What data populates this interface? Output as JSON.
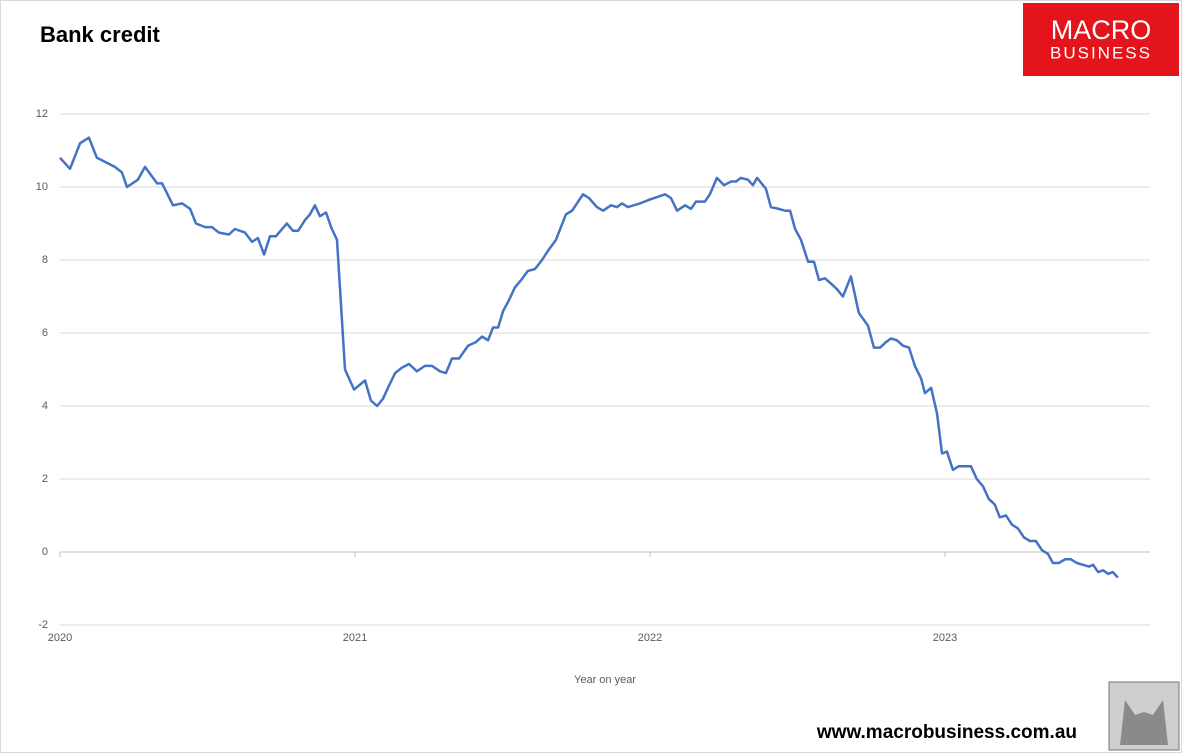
{
  "chart_data": {
    "type": "line",
    "title": "Bank credit",
    "x_label": "Year on year",
    "logo_text": [
      "MACRO",
      "BUSINESS"
    ],
    "source": "www.macrobusiness.com.au",
    "color": "#4472c4",
    "grid": true,
    "xlim": [
      2020,
      2023.695
    ],
    "xticks": [
      2020,
      2021,
      2022,
      2023
    ],
    "ylim": [
      -2,
      12
    ],
    "yticks": [
      -2,
      0,
      2,
      4,
      6,
      8,
      10,
      12
    ],
    "x": [
      2020.0,
      2020.034,
      2020.068,
      2020.098,
      2020.125,
      2020.186,
      2020.21,
      2020.227,
      2020.264,
      2020.288,
      2020.329,
      2020.346,
      2020.383,
      2020.414,
      2020.441,
      2020.461,
      2020.492,
      2020.515,
      2020.539,
      2020.573,
      2020.593,
      2020.627,
      2020.651,
      2020.671,
      2020.692,
      2020.712,
      2020.732,
      2020.769,
      2020.79,
      2020.807,
      2020.831,
      2020.847,
      2020.864,
      2020.881,
      2020.902,
      2020.919,
      2020.939,
      2020.966,
      2020.997,
      2021.034,
      2021.054,
      2021.075,
      2021.095,
      2021.115,
      2021.136,
      2021.159,
      2021.183,
      2021.21,
      2021.237,
      2021.261,
      2021.288,
      2021.308,
      2021.329,
      2021.353,
      2021.383,
      2021.41,
      2021.431,
      2021.451,
      2021.468,
      2021.485,
      2021.502,
      2021.522,
      2021.542,
      2021.563,
      2021.586,
      2021.61,
      2021.634,
      2021.654,
      2021.681,
      2021.715,
      2021.736,
      2021.773,
      2021.793,
      2021.82,
      2021.841,
      2021.868,
      2021.888,
      2021.905,
      2021.925,
      2021.966,
      2021.997,
      2022.034,
      2022.051,
      2022.071,
      2022.092,
      2022.119,
      2022.139,
      2022.156,
      2022.186,
      2022.203,
      2022.227,
      2022.251,
      2022.275,
      2022.292,
      2022.308,
      2022.332,
      2022.349,
      2022.363,
      2022.393,
      2022.41,
      2022.437,
      2022.458,
      2022.475,
      2022.492,
      2022.512,
      2022.536,
      2022.556,
      2022.573,
      2022.593,
      2022.614,
      2022.634,
      2022.654,
      2022.681,
      2022.708,
      2022.739,
      2022.759,
      2022.78,
      2022.8,
      2022.817,
      2022.837,
      2022.858,
      2022.878,
      2022.898,
      2022.919,
      2022.932,
      2022.953,
      2022.973,
      2022.99,
      2023.007,
      2023.027,
      2023.047,
      2023.071,
      2023.088,
      2023.108,
      2023.129,
      2023.149,
      2023.169,
      2023.186,
      2023.207,
      2023.227,
      2023.247,
      2023.268,
      2023.288,
      2023.308,
      2023.329,
      2023.349,
      2023.366,
      2023.386,
      2023.407,
      2023.427,
      2023.447,
      2023.468,
      2023.488,
      2023.502,
      2023.519,
      2023.536,
      2023.553,
      2023.569,
      2023.586
    ],
    "values": [
      10.8,
      10.5,
      11.2,
      11.35,
      10.8,
      10.55,
      10.4,
      10.0,
      10.2,
      10.55,
      10.1,
      10.1,
      9.5,
      9.55,
      9.4,
      9.0,
      8.9,
      8.9,
      8.75,
      8.7,
      8.85,
      8.75,
      8.5,
      8.6,
      8.15,
      8.65,
      8.65,
      9.0,
      8.8,
      8.8,
      9.1,
      9.25,
      9.5,
      9.2,
      9.3,
      8.9,
      8.55,
      5.0,
      4.45,
      4.7,
      4.15,
      4.0,
      4.2,
      4.55,
      4.9,
      5.05,
      5.15,
      4.95,
      5.1,
      5.1,
      4.95,
      4.9,
      5.3,
      5.3,
      5.65,
      5.75,
      5.9,
      5.8,
      6.15,
      6.15,
      6.6,
      6.9,
      7.25,
      7.45,
      7.7,
      7.75,
      8.0,
      8.25,
      8.55,
      9.25,
      9.35,
      9.8,
      9.7,
      9.45,
      9.35,
      9.5,
      9.45,
      9.55,
      9.45,
      9.55,
      9.65,
      9.75,
      9.8,
      9.7,
      9.35,
      9.5,
      9.4,
      9.6,
      9.6,
      9.8,
      10.25,
      10.05,
      10.15,
      10.15,
      10.25,
      10.2,
      10.05,
      10.25,
      9.95,
      9.45,
      9.4,
      9.35,
      9.35,
      8.85,
      8.55,
      7.95,
      7.95,
      7.45,
      7.5,
      7.35,
      7.2,
      7.0,
      7.55,
      6.55,
      6.2,
      5.6,
      5.6,
      5.75,
      5.85,
      5.8,
      5.65,
      5.6,
      5.1,
      4.75,
      4.35,
      4.5,
      3.8,
      2.7,
      2.75,
      2.25,
      2.35,
      2.35,
      2.35,
      2.0,
      1.8,
      1.45,
      1.3,
      0.95,
      1.0,
      0.75,
      0.65,
      0.4,
      0.3,
      0.3,
      0.05,
      -0.05,
      -0.3,
      -0.3,
      -0.2,
      -0.2,
      -0.3,
      -0.35,
      -0.4,
      -0.35,
      -0.55,
      -0.5,
      -0.6,
      -0.55,
      -0.7
    ]
  }
}
